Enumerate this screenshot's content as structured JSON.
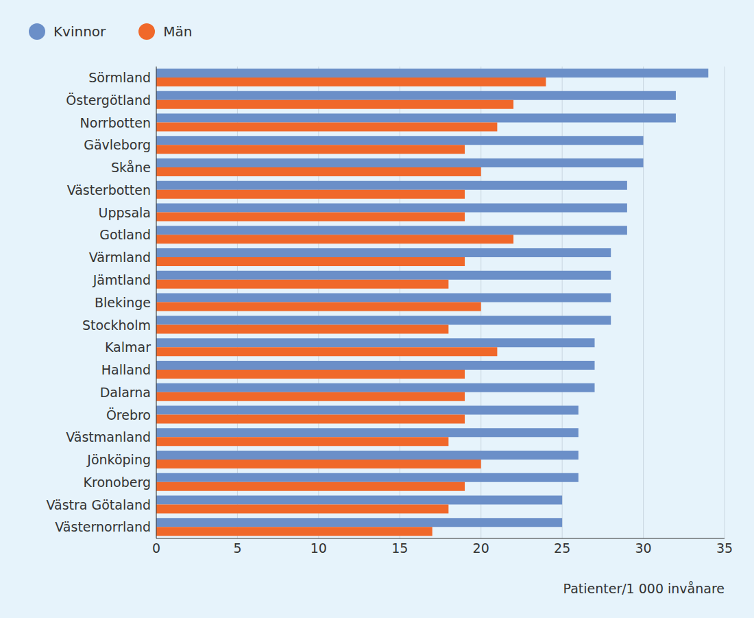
{
  "chart_data": {
    "type": "bar",
    "orientation": "horizontal",
    "x_label": "Patienter/1 000 invånare",
    "categories": [
      "Sörmland",
      "Östergötland",
      "Norrbotten",
      "Gävleborg",
      "Skåne",
      "Västerbotten",
      "Uppsala",
      "Gotland",
      "Värmland",
      "Jämtland",
      "Blekinge",
      "Stockholm",
      "Kalmar",
      "Halland",
      "Dalarna",
      "Örebro",
      "Västmanland",
      "Jönköping",
      "Kronoberg",
      "Västra Götaland",
      "Västernorrland"
    ],
    "series": [
      {
        "name": "Kvinnor",
        "color": "#6b8fc8",
        "values": [
          34,
          32,
          32,
          30,
          30,
          29,
          29,
          29,
          28,
          28,
          28,
          28,
          27,
          27,
          27,
          26,
          26,
          26,
          26,
          25,
          25
        ]
      },
      {
        "name": "Män",
        "color": "#f0682a",
        "values": [
          24,
          22,
          21,
          19,
          20,
          19,
          19,
          22,
          19,
          18,
          20,
          18,
          21,
          19,
          19,
          19,
          18,
          20,
          19,
          18,
          17
        ]
      }
    ],
    "xlim": [
      0,
      35
    ],
    "xticks": [
      0,
      5,
      10,
      15,
      20,
      25,
      30,
      35
    ],
    "grid": true,
    "legend": "top-left"
  }
}
